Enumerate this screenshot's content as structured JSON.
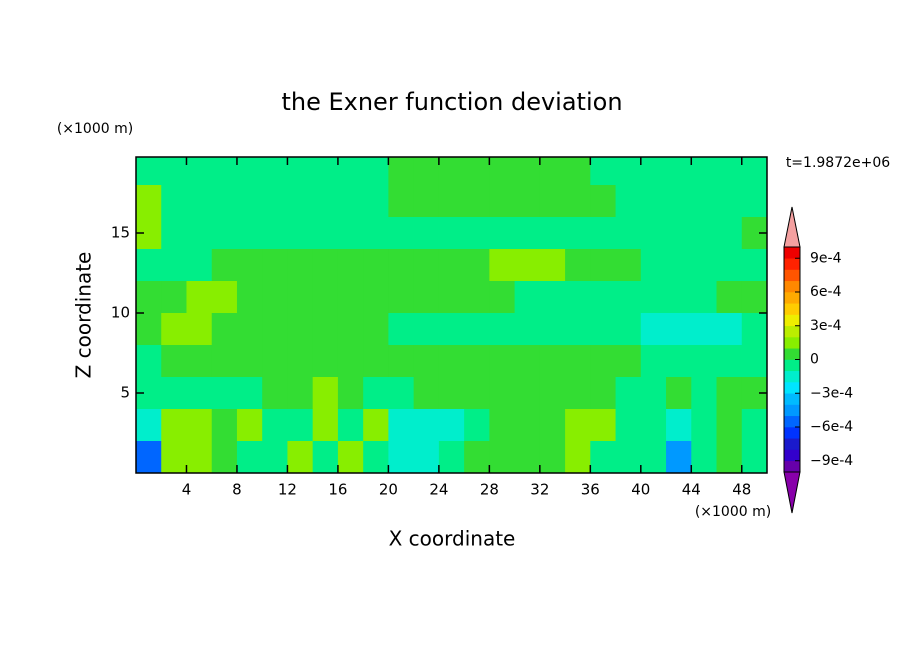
{
  "chart_data": {
    "type": "contour",
    "title": "the Exner function deviation",
    "xlabel": "X coordinate",
    "ylabel": "Z coordinate",
    "x_unit": "(×1000 m)",
    "y_unit": "(×1000 m)",
    "time_label": "t=1.9872e+06",
    "xlim": [
      0,
      50
    ],
    "ylim": [
      0,
      19.75
    ],
    "xticks": [
      4,
      8,
      12,
      16,
      20,
      24,
      28,
      32,
      36,
      40,
      44,
      48
    ],
    "yticks": [
      5,
      10,
      15
    ],
    "x": [
      1,
      3,
      5,
      7,
      9,
      11,
      13,
      15,
      17,
      19,
      21,
      23,
      25,
      27,
      29,
      31,
      33,
      35,
      37,
      39,
      41,
      43,
      45,
      47,
      49
    ],
    "y": [
      19,
      17,
      15,
      13,
      11,
      9,
      7,
      5,
      3,
      1
    ],
    "z": [
      [
        -5e-05,
        -5e-05,
        -5e-05,
        -5e-05,
        -5e-05,
        -5e-05,
        -5e-05,
        -5e-05,
        -5e-05,
        -5e-05,
        5e-05,
        5e-05,
        5e-05,
        5e-05,
        5e-05,
        5e-05,
        5e-05,
        5e-05,
        -5e-05,
        -5e-05,
        -5e-05,
        -5e-05,
        -5e-05,
        -5e-05,
        -5e-05
      ],
      [
        0.00015,
        -5e-05,
        -5e-05,
        -5e-05,
        -5e-05,
        -5e-05,
        -5e-05,
        -5e-05,
        -5e-05,
        -5e-05,
        5e-05,
        5e-05,
        5e-05,
        5e-05,
        5e-05,
        5e-05,
        5e-05,
        5e-05,
        5e-05,
        -5e-05,
        -5e-05,
        -5e-05,
        -5e-05,
        -5e-05,
        -5e-05
      ],
      [
        0.00015,
        -5e-05,
        -5e-05,
        -5e-05,
        -5e-05,
        -5e-05,
        -5e-05,
        -5e-05,
        -5e-05,
        -5e-05,
        -5e-05,
        -5e-05,
        -5e-05,
        -5e-05,
        -5e-05,
        -5e-05,
        -5e-05,
        -5e-05,
        -5e-05,
        -5e-05,
        -5e-05,
        -5e-05,
        -5e-05,
        -5e-05,
        5e-05
      ],
      [
        -5e-05,
        -5e-05,
        -5e-05,
        5e-05,
        5e-05,
        5e-05,
        5e-05,
        5e-05,
        5e-05,
        5e-05,
        5e-05,
        5e-05,
        5e-05,
        5e-05,
        0.00015,
        0.00015,
        0.00015,
        5e-05,
        5e-05,
        5e-05,
        -5e-05,
        -5e-05,
        -5e-05,
        -5e-05,
        -5e-05
      ],
      [
        5e-05,
        5e-05,
        0.00015,
        0.00015,
        5e-05,
        5e-05,
        5e-05,
        5e-05,
        5e-05,
        5e-05,
        5e-05,
        5e-05,
        5e-05,
        5e-05,
        5e-05,
        -5e-05,
        -5e-05,
        -5e-05,
        -5e-05,
        -5e-05,
        -5e-05,
        -5e-05,
        -5e-05,
        5e-05,
        5e-05
      ],
      [
        5e-05,
        0.00015,
        0.00015,
        5e-05,
        5e-05,
        5e-05,
        5e-05,
        5e-05,
        5e-05,
        5e-05,
        -5e-05,
        -5e-05,
        -5e-05,
        -5e-05,
        -5e-05,
        -5e-05,
        -5e-05,
        -5e-05,
        -5e-05,
        -5e-05,
        -0.00015,
        -0.00015,
        -0.00015,
        -0.00015,
        -5e-05
      ],
      [
        -5e-05,
        5e-05,
        5e-05,
        5e-05,
        5e-05,
        5e-05,
        5e-05,
        5e-05,
        5e-05,
        5e-05,
        5e-05,
        5e-05,
        5e-05,
        5e-05,
        5e-05,
        5e-05,
        5e-05,
        5e-05,
        5e-05,
        5e-05,
        -5e-05,
        -5e-05,
        -5e-05,
        -5e-05,
        -5e-05
      ],
      [
        -5e-05,
        -5e-05,
        -5e-05,
        -5e-05,
        -5e-05,
        5e-05,
        5e-05,
        0.00015,
        5e-05,
        -5e-05,
        -5e-05,
        5e-05,
        5e-05,
        5e-05,
        5e-05,
        5e-05,
        5e-05,
        5e-05,
        5e-05,
        -5e-05,
        -5e-05,
        5e-05,
        -5e-05,
        5e-05,
        5e-05
      ],
      [
        -0.00015,
        0.00015,
        0.00015,
        5e-05,
        0.00015,
        -5e-05,
        -5e-05,
        0.00015,
        -5e-05,
        0.00015,
        -0.00015,
        -0.00015,
        -0.00015,
        -5e-05,
        5e-05,
        5e-05,
        5e-05,
        0.00015,
        0.00015,
        -5e-05,
        -5e-05,
        -0.00015,
        -5e-05,
        5e-05,
        -5e-05
      ],
      [
        -0.00055,
        0.00015,
        0.00015,
        5e-05,
        -5e-05,
        -5e-05,
        0.00015,
        -5e-05,
        0.00015,
        -5e-05,
        -0.00015,
        -0.00015,
        -5e-05,
        5e-05,
        5e-05,
        5e-05,
        5e-05,
        0.00015,
        -5e-05,
        -5e-05,
        -5e-05,
        -0.00045,
        -5e-05,
        5e-05,
        -5e-05
      ]
    ],
    "colorbar_range": [
      -0.001,
      0.001
    ],
    "colors": [
      "#6600aa",
      "#3300cc",
      "#1a1acc",
      "#0033ff",
      "#0066ff",
      "#0099ff",
      "#00bbff",
      "#00e5ff",
      "#00eecc",
      "#00ee88",
      "#33dd33",
      "#88ee00",
      "#bbee00",
      "#eeee00",
      "#ffcc00",
      "#ffaa00",
      "#ff8800",
      "#ff5500",
      "#ff2200",
      "#ee0000"
    ],
    "under_color": "#8800aa",
    "over_color": "#f4a0a0",
    "colorbar_ticks": [
      {
        "value": 0.0009,
        "label": "9e-4"
      },
      {
        "value": 0.0006,
        "label": "6e-4"
      },
      {
        "value": 0.0003,
        "label": "3e-4"
      },
      0,
      {
        "value": -0.0003,
        "label": "−3e-4"
      },
      {
        "value": -0.0006,
        "label": "−6e-4"
      },
      {
        "value": -0.0009,
        "label": "−9e-4"
      }
    ]
  }
}
